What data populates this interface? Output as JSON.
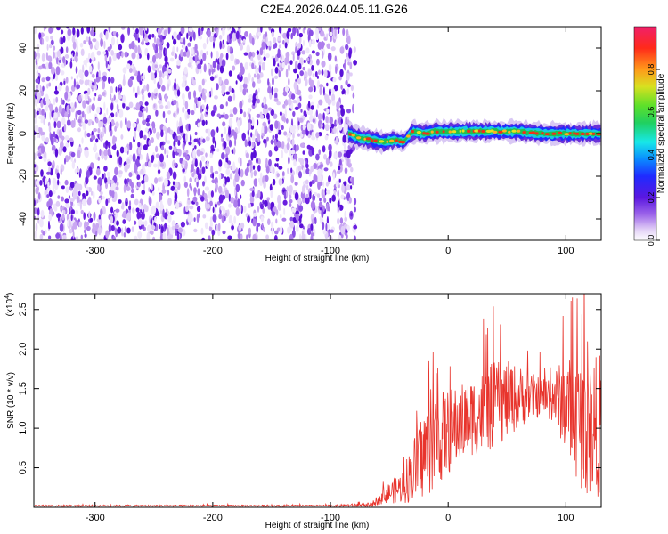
{
  "title": "C2E4.2026.044.05.11.G26",
  "chart_data": [
    {
      "type": "heatmap",
      "name": "spectrogram",
      "xlabel": "Height of straight line (km)",
      "ylabel": "Frequency (Hz)",
      "xlim": [
        -352,
        130
      ],
      "ylim": [
        -50,
        50
      ],
      "xticks": [
        -300,
        -200,
        -100,
        0,
        100
      ],
      "yticks": [
        -40,
        -20,
        0,
        20,
        40
      ],
      "xtick_labels": [
        "-300",
        "-200",
        "-100",
        "0",
        "100"
      ],
      "ytick_labels": [
        "-40",
        "-20",
        "0",
        "20",
        "40"
      ],
      "noise_region_x": [
        -352,
        -85
      ],
      "signal_track": {
        "x": [
          -85,
          -75,
          -65,
          -55,
          -45,
          -38,
          -30,
          -20,
          -10,
          0,
          20,
          40,
          60,
          80,
          100,
          130
        ],
        "frequency": [
          0,
          -2,
          -3,
          -4,
          -3,
          -4,
          1,
          0,
          1,
          1,
          1,
          1,
          1,
          0,
          0,
          0
        ]
      },
      "colorbar": {
        "label": "Normalized spectral amplitude",
        "range": [
          0.0,
          1.0
        ],
        "ticks": [
          0.0,
          0.2,
          0.4,
          0.6,
          0.8
        ],
        "tick_labels": [
          "0.0",
          "0.2",
          "0.4",
          "0.6",
          "0.8"
        ]
      }
    },
    {
      "type": "line",
      "name": "snr",
      "xlabel": "Height of straight line (km)",
      "ylabel": "SNR (10 * v/v)",
      "scale_label": "(x10",
      "scale_exponent": "4",
      "xlim": [
        -352,
        130
      ],
      "ylim": [
        0,
        2.7
      ],
      "xticks": [
        -300,
        -200,
        -100,
        0,
        100
      ],
      "yticks": [
        0.5,
        1.0,
        1.5,
        2.0,
        2.5
      ],
      "xtick_labels": [
        "-300",
        "-200",
        "-100",
        "0",
        "100"
      ],
      "ytick_labels": [
        "0.5",
        "1.0",
        "1.5",
        "2.0",
        "2.5"
      ],
      "color": "#e8342c",
      "envelope": {
        "x": [
          -352,
          -100,
          -65,
          -55,
          -40,
          -30,
          -20,
          -10,
          0,
          10,
          20,
          30,
          40,
          50,
          60,
          70,
          80,
          90,
          100,
          110,
          120,
          130
        ],
        "mean": [
          0.02,
          0.02,
          0.03,
          0.15,
          0.25,
          0.45,
          0.7,
          0.85,
          0.95,
          1.05,
          1.15,
          1.2,
          1.3,
          1.35,
          1.4,
          1.4,
          1.4,
          1.4,
          1.3,
          1.1,
          1.0,
          1.05
        ],
        "amplitude": [
          0.01,
          0.01,
          0.03,
          0.1,
          0.2,
          0.4,
          0.6,
          0.6,
          0.55,
          0.5,
          0.5,
          0.55,
          0.55,
          0.5,
          0.4,
          0.3,
          0.25,
          0.35,
          0.6,
          0.8,
          0.9,
          0.9
        ]
      }
    }
  ]
}
